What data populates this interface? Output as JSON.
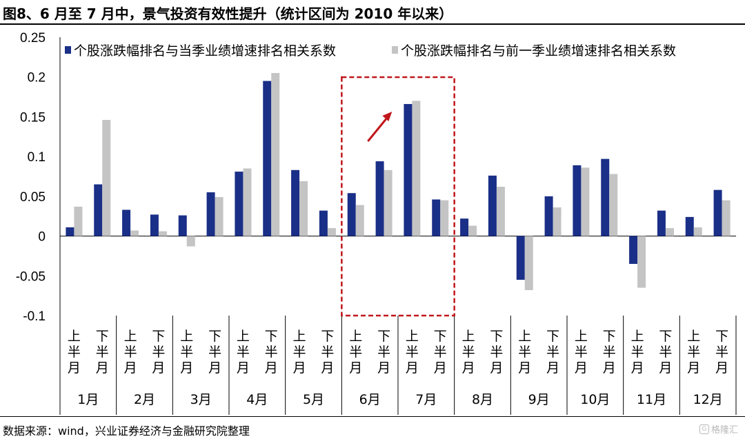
{
  "title": "图8、6 月至 7 月中，景气投资有效性提升（统计区间为 2010 年以来）",
  "source": "数据来源：wind，兴业证券经济与金融研究院整理",
  "watermark": "格隆汇",
  "colors": {
    "series1": "#1a2f87",
    "series2": "#c4c4c4",
    "highlight": "#c0161b",
    "axis": "#000000"
  },
  "chart_data": {
    "type": "bar",
    "ylim": [
      -0.1,
      0.25
    ],
    "yticks": [
      "0.25",
      "0.2",
      "0.15",
      "0.1",
      "0.05",
      "0",
      "-0.05",
      "-0.1"
    ],
    "ytick_values": [
      0.25,
      0.2,
      0.15,
      0.1,
      0.05,
      0,
      -0.05,
      -0.1
    ],
    "half_labels": [
      "上半月",
      "下半月"
    ],
    "months": [
      "1月",
      "2月",
      "3月",
      "4月",
      "5月",
      "6月",
      "7月",
      "8月",
      "9月",
      "10月",
      "11月",
      "12月"
    ],
    "legend_position": "top",
    "series": [
      {
        "name": "个股涨跌幅排名与当季业绩增速排名相关系数",
        "values": [
          0.011,
          0.065,
          0.033,
          0.027,
          0.026,
          0.055,
          0.081,
          0.195,
          0.083,
          0.032,
          0.054,
          0.094,
          0.166,
          0.046,
          0.022,
          0.076,
          -0.055,
          0.05,
          0.089,
          0.097,
          -0.035,
          0.032,
          0.024,
          0.058
        ]
      },
      {
        "name": "个股涨跌幅排名与前一季业绩增速排名相关系数",
        "values": [
          0.037,
          0.146,
          0.007,
          0.006,
          -0.013,
          0.049,
          0.085,
          0.205,
          0.069,
          0.01,
          0.039,
          0.083,
          0.17,
          0.045,
          0.013,
          0.062,
          -0.068,
          0.036,
          0.086,
          0.078,
          -0.065,
          0.01,
          0.011,
          0.045
        ]
      }
    ],
    "highlight_months": [
      "6月",
      "7月"
    ]
  }
}
